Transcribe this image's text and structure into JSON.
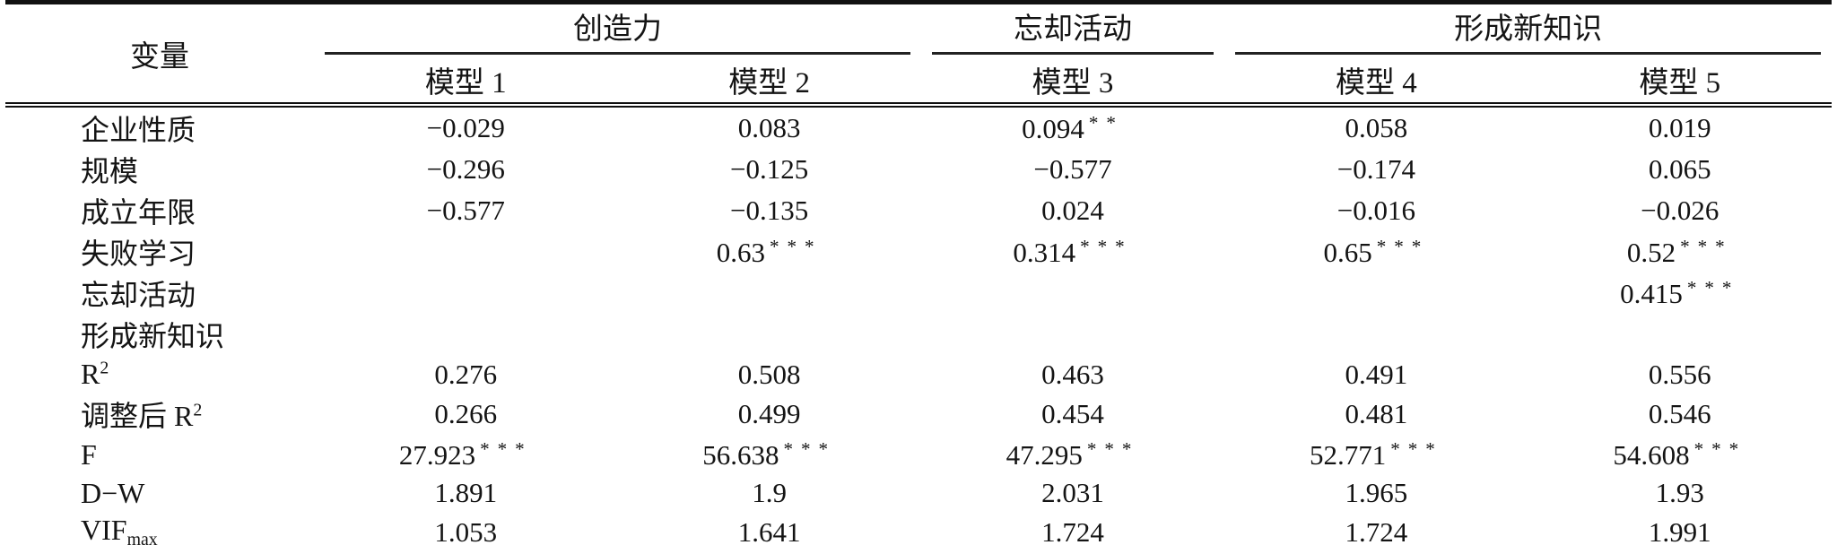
{
  "table": {
    "header": {
      "variable_label": "变量",
      "groups": [
        {
          "label": "创造力",
          "span": 2
        },
        {
          "label": "忘却活动",
          "span": 1
        },
        {
          "label": "形成新知识",
          "span": 2
        }
      ],
      "models": [
        "模型 1",
        "模型 2",
        "模型 3",
        "模型 4",
        "模型 5"
      ]
    },
    "rows": [
      {
        "label": "企业性质",
        "values": [
          "−0.029",
          "0.083",
          "0.094**",
          "0.058",
          "0.019"
        ]
      },
      {
        "label": "规模",
        "values": [
          "−0.296",
          "−0.125",
          "−0.577",
          "−0.174",
          "0.065"
        ]
      },
      {
        "label": "成立年限",
        "values": [
          "−0.577",
          "−0.135",
          "0.024",
          "−0.016",
          "−0.026"
        ]
      },
      {
        "label": "失败学习",
        "values": [
          "",
          "0.63***",
          "0.314***",
          "0.65***",
          "0.52***"
        ]
      },
      {
        "label": "忘却活动",
        "values": [
          "",
          "",
          "",
          "",
          "0.415***"
        ]
      },
      {
        "label": "形成新知识",
        "values": [
          "",
          "",
          "",
          "",
          ""
        ]
      },
      {
        "label": "R^{2}",
        "values": [
          "0.276",
          "0.508",
          "0.463",
          "0.491",
          "0.556"
        ]
      },
      {
        "label": "调整后 R^{2}",
        "values": [
          "0.266",
          "0.499",
          "0.454",
          "0.481",
          "0.546"
        ]
      },
      {
        "label": "F",
        "values": [
          "27.923***",
          "56.638***",
          "47.295***",
          "52.771***",
          "54.608***"
        ]
      },
      {
        "label": "D−W",
        "values": [
          "1.891",
          "1.9",
          "2.031",
          "1.965",
          "1.93"
        ]
      },
      {
        "label": "VIF_{max}",
        "values": [
          "1.053",
          "1.641",
          "1.724",
          "1.724",
          "1.991"
        ]
      }
    ]
  }
}
